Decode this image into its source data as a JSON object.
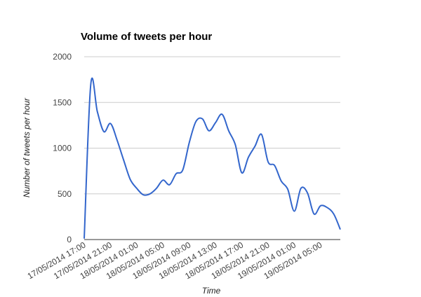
{
  "chart_data": {
    "type": "line",
    "title": "Volume of tweets per hour",
    "xlabel": "Time",
    "ylabel": "Number of tweets per hour",
    "ylim": [
      0,
      2000
    ],
    "yticks": [
      "0",
      "500",
      "1000",
      "1500",
      "2000"
    ],
    "x_start": "17/05/2014 17:00",
    "x_step_hours": 1,
    "xticks": [
      {
        "hour": 0,
        "label": "17/05/2014 17:00"
      },
      {
        "hour": 4,
        "label": "17/05/2014 21:00"
      },
      {
        "hour": 8,
        "label": "18/05/2014 01:00"
      },
      {
        "hour": 12,
        "label": "18/05/2014 05:00"
      },
      {
        "hour": 16,
        "label": "18/05/2014 09:00"
      },
      {
        "hour": 20,
        "label": "18/05/2014 13:00"
      },
      {
        "hour": 24,
        "label": "18/05/2014 17:00"
      },
      {
        "hour": 28,
        "label": "18/05/2014 21:00"
      },
      {
        "hour": 32,
        "label": "19/05/2014 01:00"
      },
      {
        "hour": 36,
        "label": "19/05/2014 05:00"
      }
    ],
    "series": [
      {
        "color": "#3366cc",
        "values": [
          10,
          1700,
          1400,
          1180,
          1270,
          1090,
          870,
          660,
          560,
          490,
          500,
          560,
          650,
          600,
          720,
          760,
          1060,
          1290,
          1320,
          1190,
          1280,
          1370,
          1190,
          1040,
          730,
          900,
          1020,
          1150,
          850,
          810,
          640,
          550,
          310,
          560,
          510,
          280,
          370,
          350,
          280,
          110
        ]
      }
    ],
    "grid": true,
    "legend": "none"
  }
}
